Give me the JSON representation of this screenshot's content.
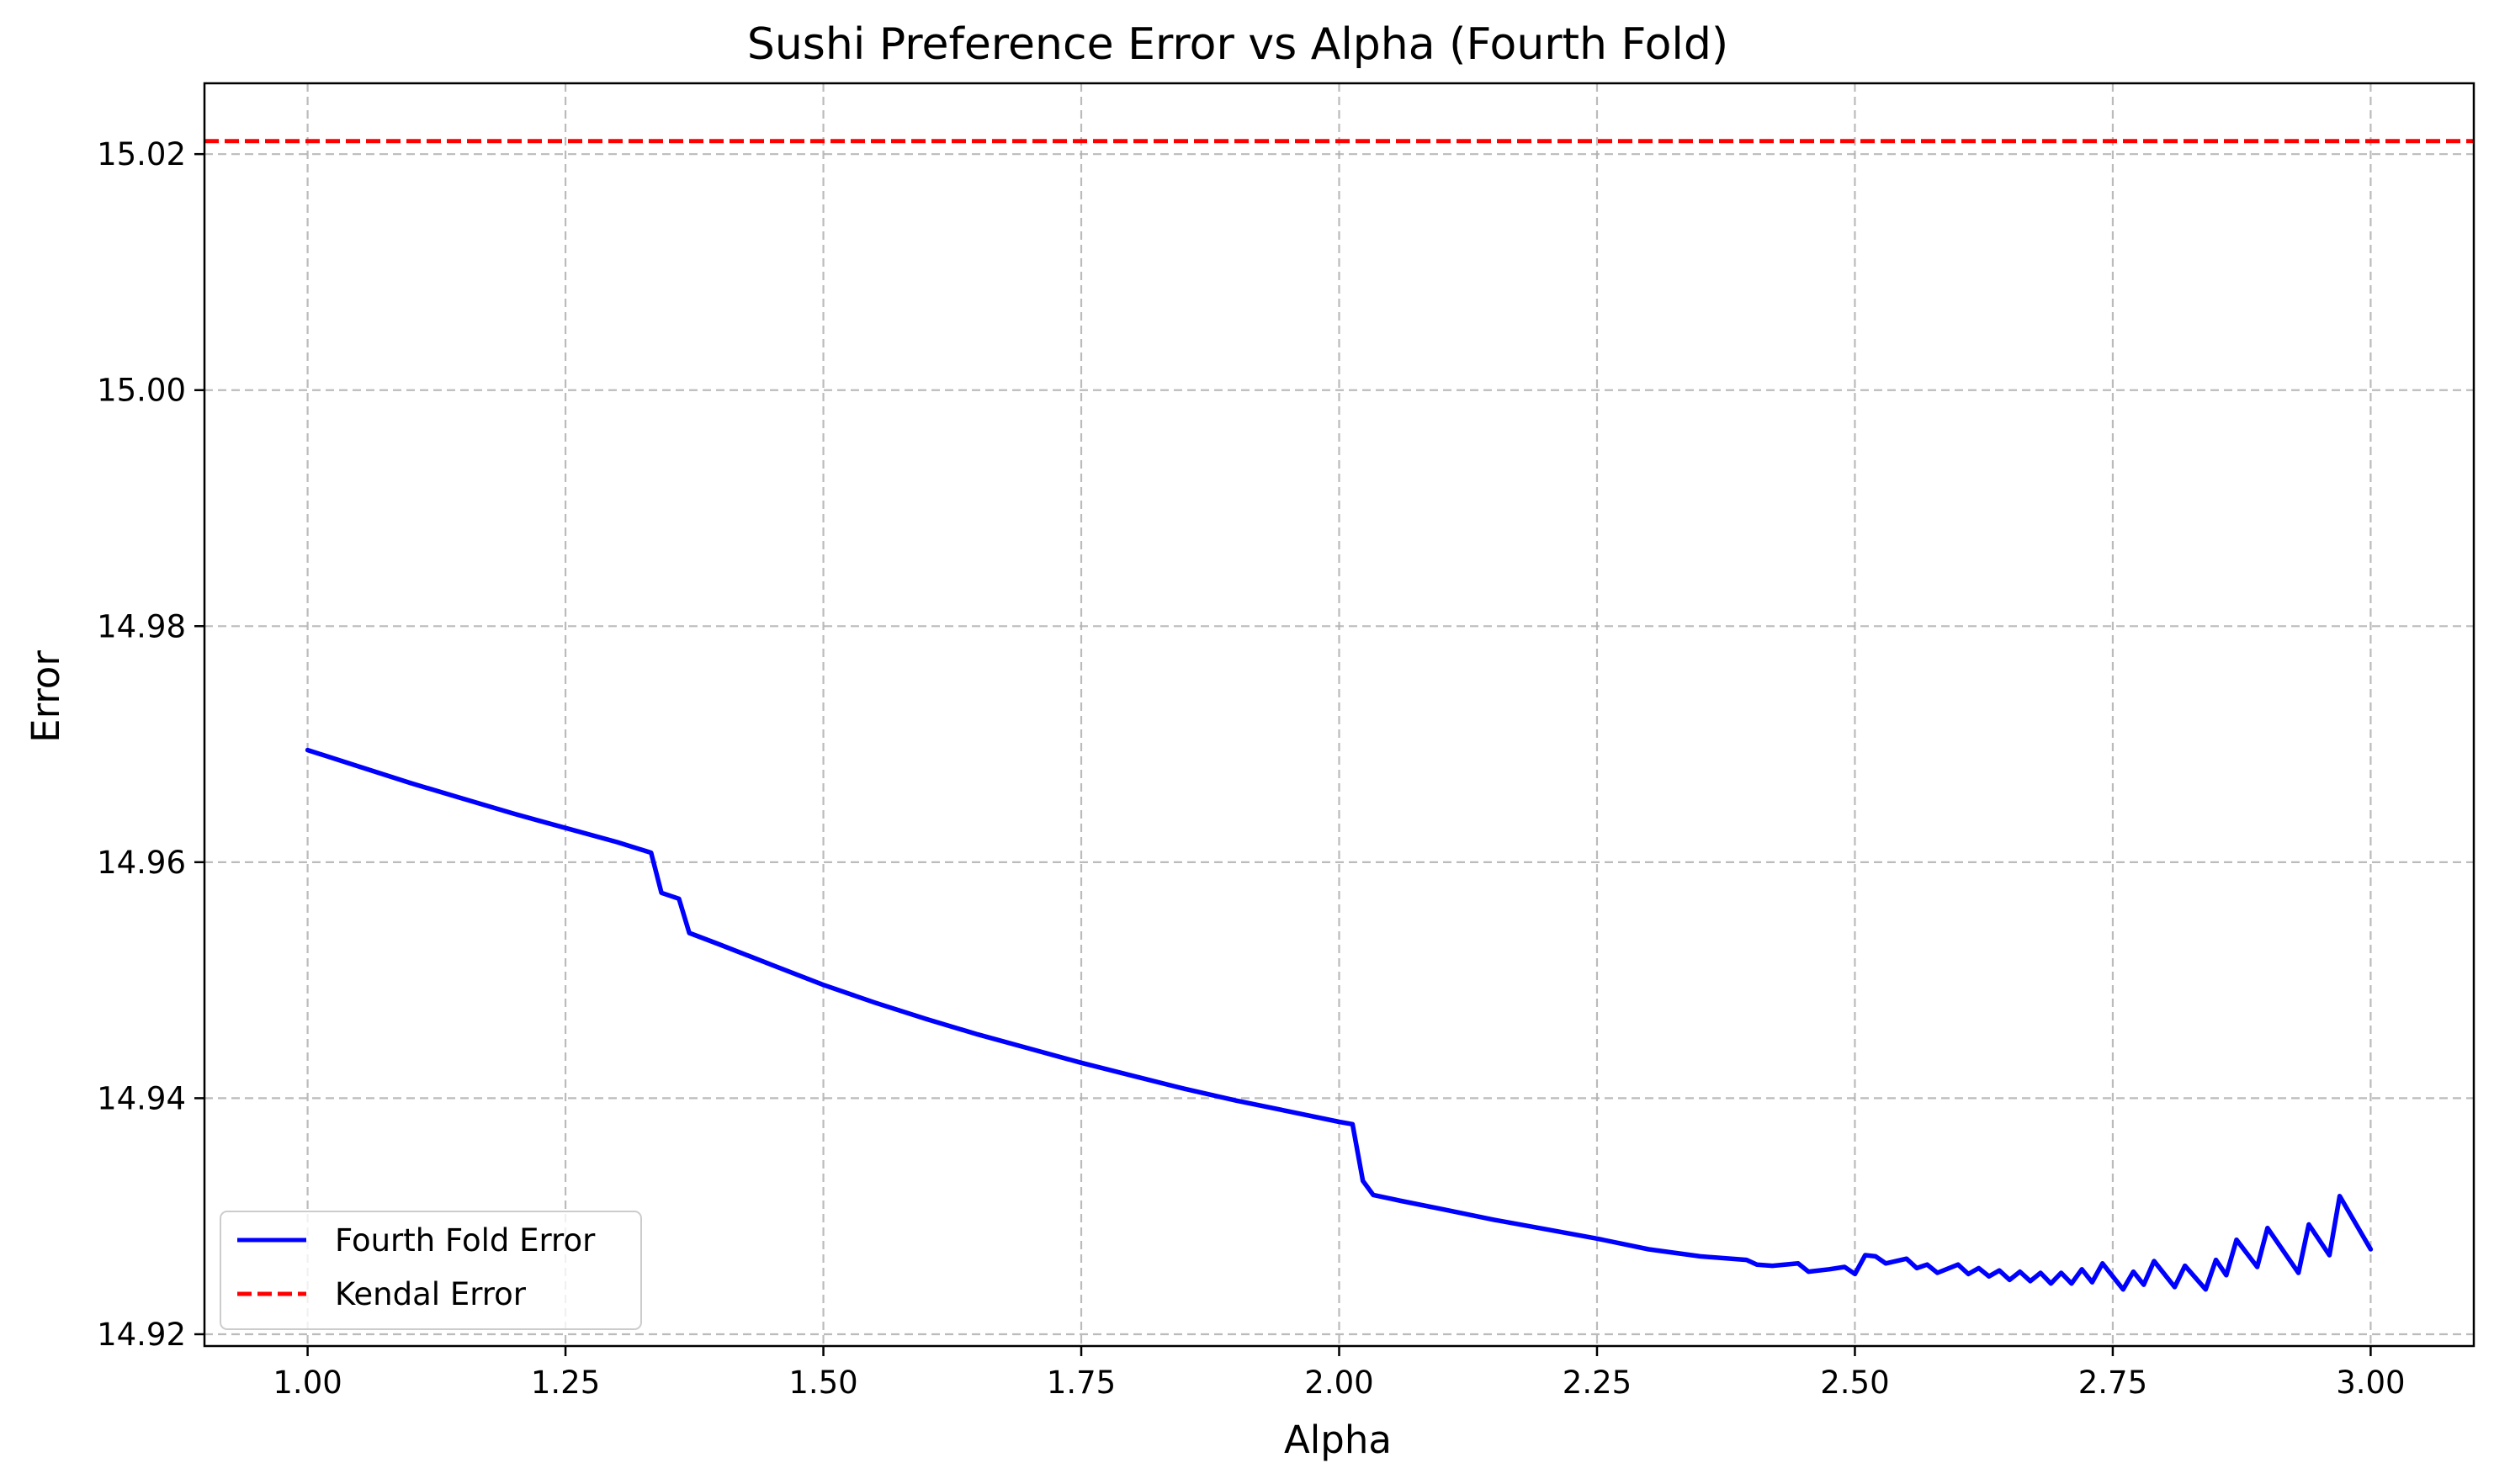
{
  "chart_data": {
    "type": "line",
    "title": "Sushi Preference Error vs Alpha (Fourth Fold)",
    "xlabel": "Alpha",
    "ylabel": "Error",
    "xlim": [
      0.9,
      3.1
    ],
    "ylim": [
      14.919,
      15.026
    ],
    "xticks": [
      "1.00",
      "1.25",
      "1.50",
      "1.75",
      "2.00",
      "2.25",
      "2.50",
      "2.75",
      "3.00"
    ],
    "yticks": [
      "14.92",
      "14.94",
      "14.96",
      "14.98",
      "15.00",
      "15.02"
    ],
    "grid": true,
    "legend_position": "lower-left",
    "series": [
      {
        "name": "Fourth Fold Error",
        "color": "#0000ff",
        "style": "solid",
        "x": [
          1.0,
          1.05,
          1.1,
          1.15,
          1.2,
          1.25,
          1.3,
          1.333,
          1.343,
          1.36,
          1.37,
          1.4,
          1.45,
          1.5,
          1.55,
          1.6,
          1.65,
          1.7,
          1.75,
          1.8,
          1.85,
          1.9,
          1.95,
          2.0,
          2.013,
          2.023,
          2.033,
          2.06,
          2.1,
          2.15,
          2.2,
          2.25,
          2.3,
          2.35,
          2.395,
          2.405,
          2.42,
          2.445,
          2.455,
          2.475,
          2.49,
          2.5,
          2.51,
          2.52,
          2.53,
          2.55,
          2.56,
          2.57,
          2.58,
          2.6,
          2.61,
          2.62,
          2.63,
          2.64,
          2.65,
          2.66,
          2.67,
          2.68,
          2.69,
          2.7,
          2.71,
          2.72,
          2.73,
          2.74,
          2.76,
          2.77,
          2.78,
          2.79,
          2.81,
          2.82,
          2.84,
          2.85,
          2.86,
          2.87,
          2.89,
          2.9,
          2.93,
          2.94,
          2.96,
          2.97,
          3.0
        ],
        "values": [
          14.9695,
          14.9681,
          14.9667,
          14.9654,
          14.9641,
          14.9629,
          14.9617,
          14.9608,
          14.9574,
          14.9569,
          14.954,
          14.953,
          14.9513,
          14.9496,
          14.9481,
          14.9467,
          14.9454,
          14.9442,
          14.943,
          14.9419,
          14.9408,
          14.9398,
          14.9389,
          14.938,
          14.9378,
          14.933,
          14.9318,
          14.9313,
          14.9306,
          14.9297,
          14.9289,
          14.9281,
          14.9272,
          14.9266,
          14.9263,
          14.9259,
          14.9258,
          14.926,
          14.9253,
          14.9255,
          14.9257,
          14.9251,
          14.9267,
          14.9266,
          14.926,
          14.9264,
          14.9256,
          14.9259,
          14.9252,
          14.9259,
          14.9251,
          14.9256,
          14.9249,
          14.9254,
          14.9246,
          14.9253,
          14.9245,
          14.9252,
          14.9243,
          14.9252,
          14.9243,
          14.9255,
          14.9244,
          14.926,
          14.9238,
          14.9253,
          14.9242,
          14.9262,
          14.924,
          14.9258,
          14.9238,
          14.9263,
          14.925,
          14.928,
          14.9257,
          14.929,
          14.9252,
          14.9293,
          14.9267,
          14.9317,
          14.9272
        ]
      },
      {
        "name": "Kendal Error",
        "color": "#ff0000",
        "style": "dashed",
        "y_const": 15.0211
      }
    ]
  }
}
